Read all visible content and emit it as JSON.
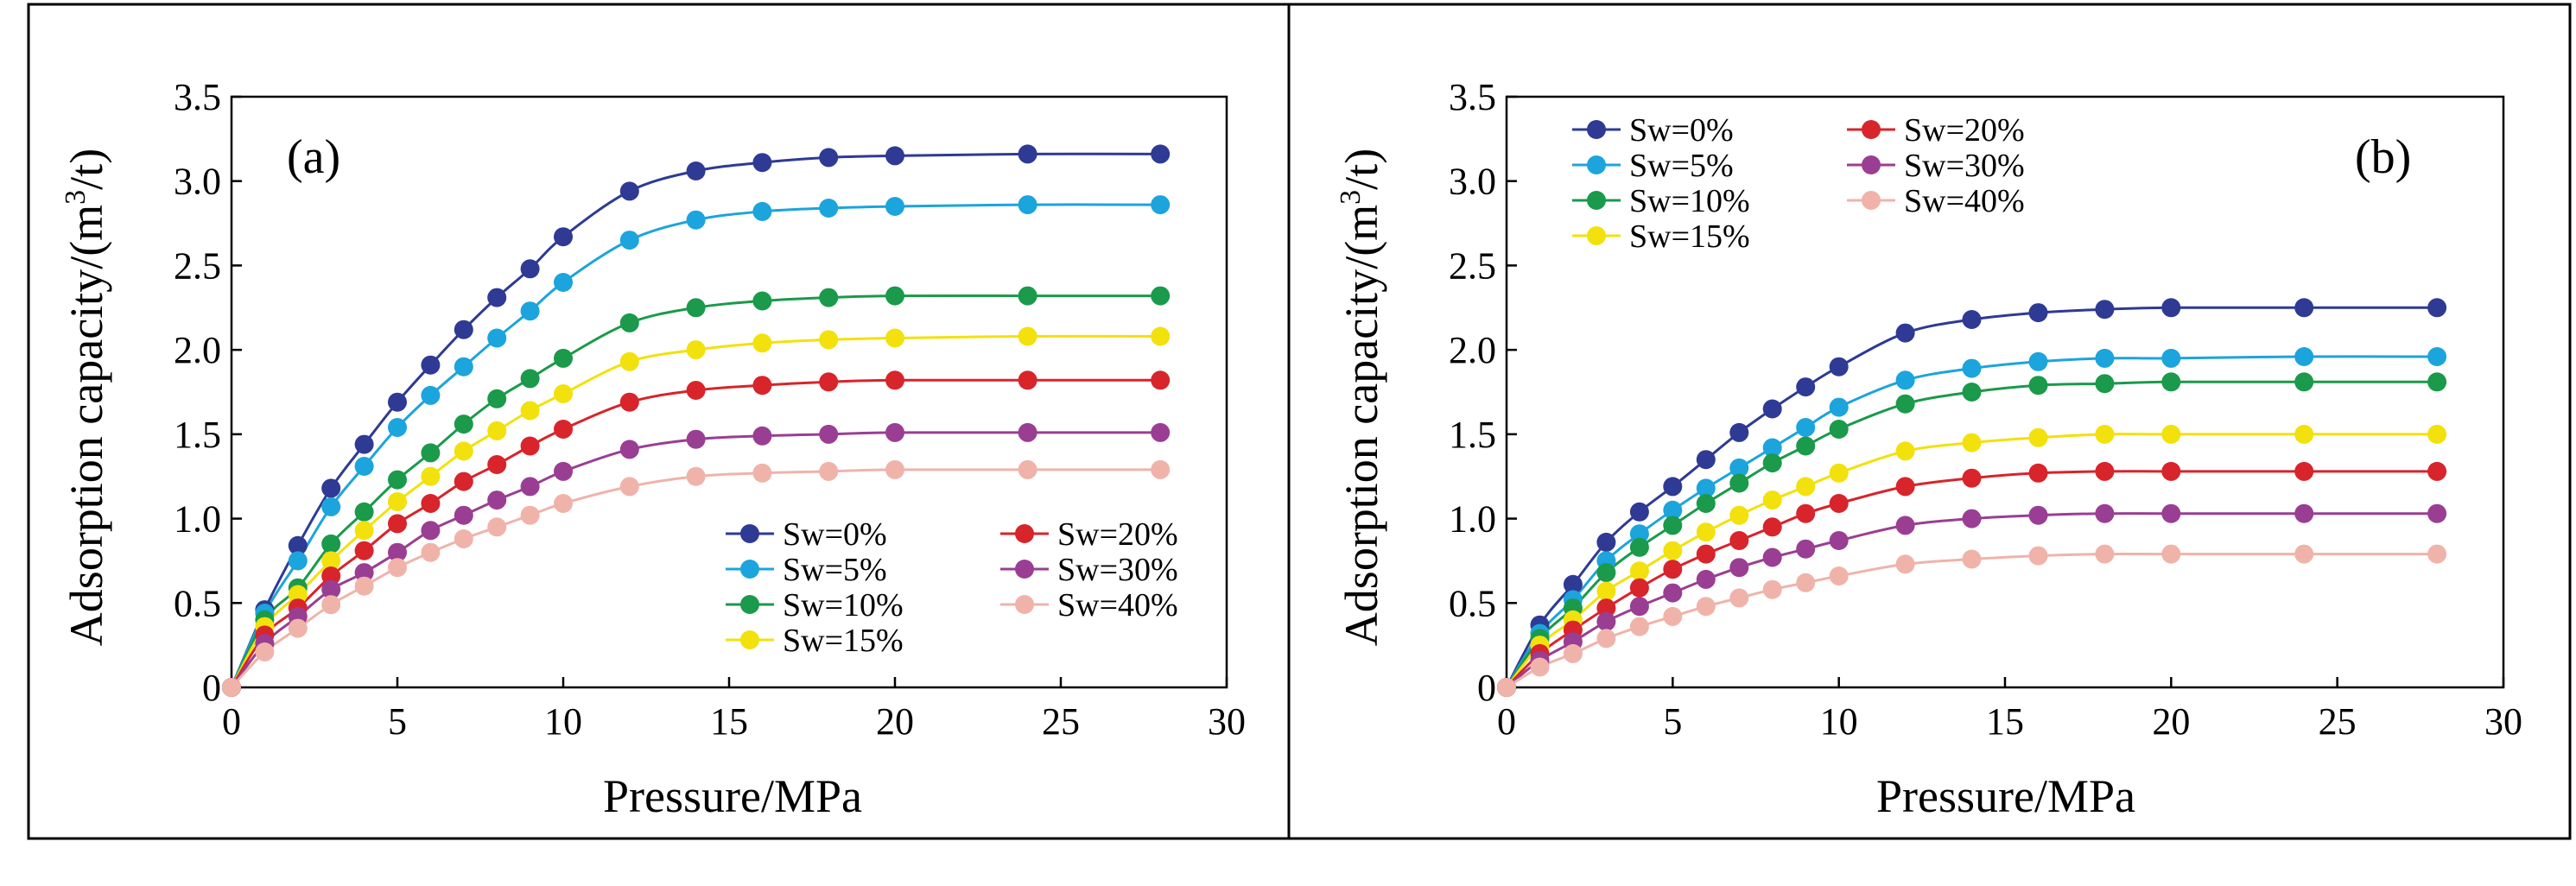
{
  "chart_data": [
    {
      "type": "line",
      "panel_label": "(a)",
      "xlabel": "Pressure/MPa",
      "ylabel_main": "Adsorption capacity/(m",
      "ylabel_sup": "3",
      "ylabel_tail": "/t)",
      "xlim": [
        0,
        30
      ],
      "ylim": [
        0,
        3.5
      ],
      "xticks": [
        0,
        5,
        10,
        15,
        20,
        25,
        30
      ],
      "xtick_labels": [
        "0",
        "5",
        "10",
        "15",
        "20",
        "25",
        "30"
      ],
      "yticks": [
        0,
        0.5,
        1.0,
        1.5,
        2.0,
        2.5,
        3.0,
        3.5
      ],
      "ytick_labels": [
        "0",
        "0.5",
        "1.0",
        "1.5",
        "2.0",
        "2.5",
        "3.0",
        "3.5"
      ],
      "grid": false,
      "legend_position": "bottom-right",
      "x": [
        0,
        1,
        2,
        3,
        4,
        5,
        6,
        7,
        8,
        9,
        10,
        12,
        14,
        16,
        18,
        20,
        24,
        28
      ],
      "series": [
        {
          "name": "Sw=0%",
          "color": "#2e3a94",
          "values": [
            0,
            0.46,
            0.84,
            1.18,
            1.44,
            1.69,
            1.91,
            2.12,
            2.31,
            2.48,
            2.67,
            2.94,
            3.06,
            3.11,
            3.14,
            3.15,
            3.16,
            3.16
          ]
        },
        {
          "name": "Sw=5%",
          "color": "#1ca4dc",
          "values": [
            0,
            0.44,
            0.75,
            1.07,
            1.31,
            1.54,
            1.73,
            1.9,
            2.07,
            2.23,
            2.4,
            2.65,
            2.77,
            2.82,
            2.84,
            2.85,
            2.86,
            2.86
          ]
        },
        {
          "name": "Sw=10%",
          "color": "#1a9a4a",
          "values": [
            0,
            0.4,
            0.59,
            0.85,
            1.04,
            1.23,
            1.39,
            1.56,
            1.71,
            1.83,
            1.95,
            2.16,
            2.25,
            2.29,
            2.31,
            2.32,
            2.32,
            2.32
          ]
        },
        {
          "name": "Sw=15%",
          "color": "#f2e10c",
          "values": [
            0,
            0.36,
            0.55,
            0.75,
            0.93,
            1.1,
            1.25,
            1.4,
            1.52,
            1.64,
            1.74,
            1.93,
            2.0,
            2.04,
            2.06,
            2.07,
            2.08,
            2.08
          ]
        },
        {
          "name": "Sw=20%",
          "color": "#d8242b",
          "values": [
            0,
            0.31,
            0.47,
            0.66,
            0.81,
            0.97,
            1.09,
            1.22,
            1.32,
            1.43,
            1.53,
            1.69,
            1.76,
            1.79,
            1.81,
            1.82,
            1.82,
            1.82
          ]
        },
        {
          "name": "Sw=30%",
          "color": "#9a3e93",
          "values": [
            0,
            0.26,
            0.42,
            0.58,
            0.68,
            0.8,
            0.93,
            1.02,
            1.11,
            1.19,
            1.28,
            1.41,
            1.47,
            1.49,
            1.5,
            1.51,
            1.51,
            1.51
          ]
        },
        {
          "name": "Sw=40%",
          "color": "#f0b3aa",
          "values": [
            0,
            0.21,
            0.35,
            0.49,
            0.6,
            0.71,
            0.8,
            0.88,
            0.95,
            1.02,
            1.09,
            1.19,
            1.25,
            1.27,
            1.28,
            1.29,
            1.29,
            1.29
          ]
        }
      ]
    },
    {
      "type": "line",
      "panel_label": "(b)",
      "xlabel": "Pressure/MPa",
      "ylabel_main": "Adsorption capacity/(m",
      "ylabel_sup": "3",
      "ylabel_tail": "/t)",
      "xlim": [
        0,
        30
      ],
      "ylim": [
        0,
        3.5
      ],
      "xticks": [
        0,
        5,
        10,
        15,
        20,
        25,
        30
      ],
      "xtick_labels": [
        "0",
        "5",
        "10",
        "15",
        "20",
        "25",
        "30"
      ],
      "yticks": [
        0,
        0.5,
        1.0,
        1.5,
        2.0,
        2.5,
        3.0,
        3.5
      ],
      "ytick_labels": [
        "0",
        "0.5",
        "1.0",
        "1.5",
        "2.0",
        "2.5",
        "3.0",
        "3.5"
      ],
      "grid": false,
      "legend_position": "top-left",
      "x": [
        0,
        1,
        2,
        3,
        4,
        5,
        6,
        7,
        8,
        9,
        10,
        12,
        14,
        16,
        18,
        20,
        24,
        28
      ],
      "series": [
        {
          "name": "Sw=0%",
          "color": "#2e3a94",
          "values": [
            0,
            0.37,
            0.61,
            0.86,
            1.04,
            1.19,
            1.35,
            1.51,
            1.65,
            1.78,
            1.9,
            2.1,
            2.18,
            2.22,
            2.24,
            2.25,
            2.25,
            2.25
          ]
        },
        {
          "name": "Sw=5%",
          "color": "#1ca4dc",
          "values": [
            0,
            0.32,
            0.52,
            0.75,
            0.91,
            1.05,
            1.18,
            1.3,
            1.42,
            1.54,
            1.66,
            1.82,
            1.89,
            1.93,
            1.95,
            1.95,
            1.96,
            1.96
          ]
        },
        {
          "name": "Sw=10%",
          "color": "#1a9a4a",
          "values": [
            0,
            0.29,
            0.47,
            0.68,
            0.83,
            0.96,
            1.09,
            1.21,
            1.33,
            1.43,
            1.53,
            1.68,
            1.75,
            1.79,
            1.8,
            1.81,
            1.81,
            1.81
          ]
        },
        {
          "name": "Sw=15%",
          "color": "#f2e10c",
          "values": [
            0,
            0.25,
            0.4,
            0.57,
            0.69,
            0.81,
            0.92,
            1.02,
            1.11,
            1.19,
            1.27,
            1.4,
            1.45,
            1.48,
            1.5,
            1.5,
            1.5,
            1.5
          ]
        },
        {
          "name": "Sw=20%",
          "color": "#d8242b",
          "values": [
            0,
            0.2,
            0.34,
            0.47,
            0.59,
            0.7,
            0.79,
            0.87,
            0.95,
            1.03,
            1.09,
            1.19,
            1.24,
            1.27,
            1.28,
            1.28,
            1.28,
            1.28
          ]
        },
        {
          "name": "Sw=30%",
          "color": "#9a3e93",
          "values": [
            0,
            0.16,
            0.27,
            0.39,
            0.48,
            0.56,
            0.64,
            0.71,
            0.77,
            0.82,
            0.87,
            0.96,
            1.0,
            1.02,
            1.03,
            1.03,
            1.03,
            1.03
          ]
        },
        {
          "name": "Sw=40%",
          "color": "#f0b3aa",
          "values": [
            0,
            0.12,
            0.2,
            0.29,
            0.36,
            0.42,
            0.48,
            0.53,
            0.58,
            0.62,
            0.66,
            0.73,
            0.76,
            0.78,
            0.79,
            0.79,
            0.79,
            0.79
          ]
        }
      ]
    }
  ]
}
